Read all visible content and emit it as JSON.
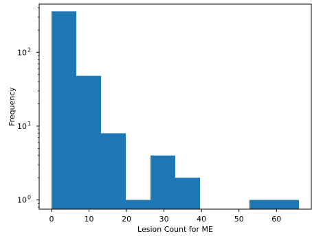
{
  "chart_data": {
    "type": "bar",
    "subtype": "histogram",
    "xlabel": "Lesion Count for ME",
    "ylabel": "Frequency",
    "y_scale": "log",
    "xlim": [
      -3.3,
      69.3
    ],
    "ylim": [
      0.75,
      450
    ],
    "grid": false,
    "bar_color": "#1f77b4",
    "bins": [
      {
        "start": 0.0,
        "end": 6.6,
        "count": 360
      },
      {
        "start": 6.6,
        "end": 13.2,
        "count": 48
      },
      {
        "start": 13.2,
        "end": 19.8,
        "count": 8
      },
      {
        "start": 19.8,
        "end": 26.4,
        "count": 1
      },
      {
        "start": 26.4,
        "end": 33.0,
        "count": 4
      },
      {
        "start": 33.0,
        "end": 39.6,
        "count": 2
      },
      {
        "start": 39.6,
        "end": 46.2,
        "count": 0
      },
      {
        "start": 46.2,
        "end": 52.8,
        "count": 0
      },
      {
        "start": 52.8,
        "end": 59.4,
        "count": 1
      },
      {
        "start": 59.4,
        "end": 66.0,
        "count": 1
      }
    ],
    "x_ticks": [
      {
        "value": 0,
        "label": "0"
      },
      {
        "value": 10,
        "label": "10"
      },
      {
        "value": 20,
        "label": "20"
      },
      {
        "value": 30,
        "label": "30"
      },
      {
        "value": 40,
        "label": "40"
      },
      {
        "value": 50,
        "label": "50"
      },
      {
        "value": 60,
        "label": "60"
      }
    ],
    "y_ticks": [
      {
        "value": 1,
        "base": "10",
        "exp": "0"
      },
      {
        "value": 10,
        "base": "10",
        "exp": "1"
      },
      {
        "value": 100,
        "base": "10",
        "exp": "2"
      }
    ]
  }
}
